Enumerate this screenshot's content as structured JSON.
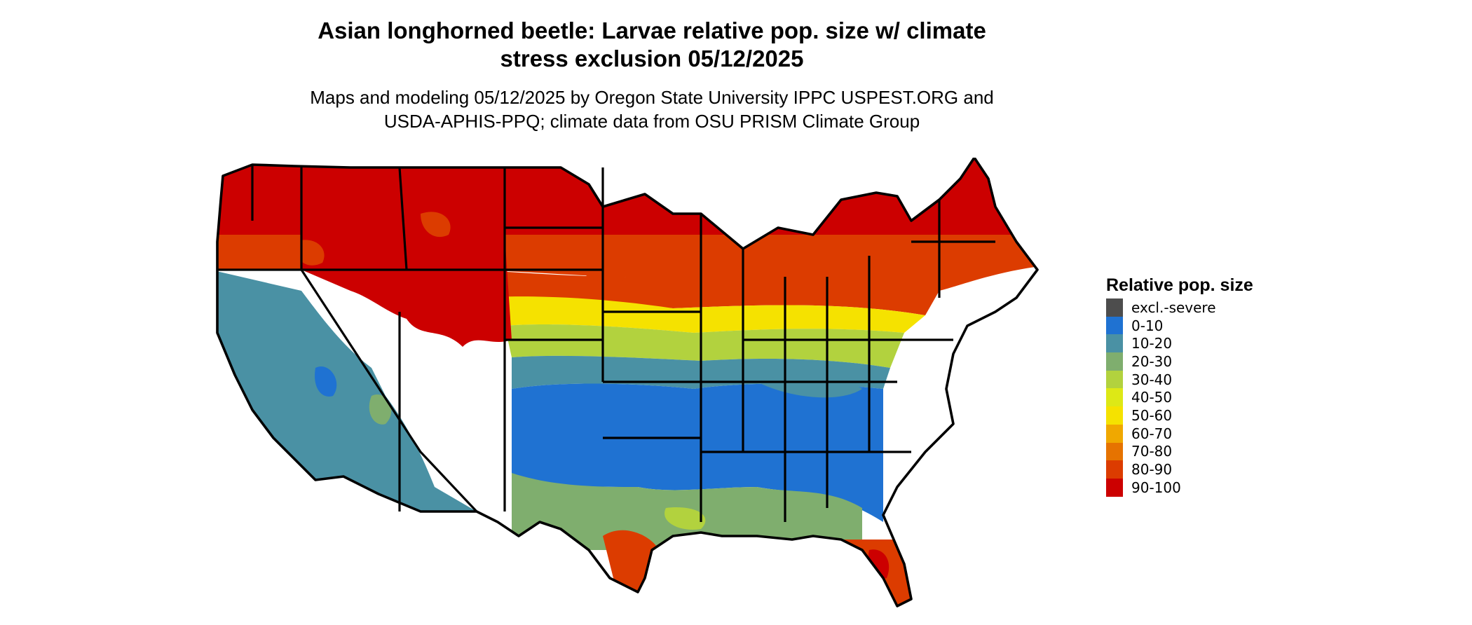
{
  "title": {
    "line1": "Asian longhorned beetle: Larvae relative pop. size w/ climate",
    "line2": "stress exclusion 05/12/2025"
  },
  "subtitle": {
    "line1": "Maps and modeling 05/12/2025 by Oregon State University IPPC USPEST.ORG and",
    "line2": "USDA-APHIS-PPQ; climate data from OSU PRISM Climate Group"
  },
  "legend": {
    "title": "Relative pop. size",
    "items": [
      {
        "label": "excl.-severe",
        "color": "#4d4d4d"
      },
      {
        "label": "0-10",
        "color": "#1f72d2"
      },
      {
        "label": "10-20",
        "color": "#4a91a4"
      },
      {
        "label": "20-30",
        "color": "#7fae6e"
      },
      {
        "label": "30-40",
        "color": "#b2d23e"
      },
      {
        "label": "40-50",
        "color": "#dde816"
      },
      {
        "label": "50-60",
        "color": "#f5e200"
      },
      {
        "label": "60-70",
        "color": "#f0a800"
      },
      {
        "label": "70-80",
        "color": "#e67300"
      },
      {
        "label": "80-90",
        "color": "#dc3c00"
      },
      {
        "label": "90-100",
        "color": "#cc0000"
      }
    ]
  },
  "map": {
    "region": "Contiguous United States",
    "bands": [
      {
        "id": "north",
        "class_index": 10
      },
      {
        "id": "upper-mid",
        "class_index": 9
      },
      {
        "id": "mid",
        "class_index": 6
      },
      {
        "id": "lower-mid",
        "class_index": 4
      },
      {
        "id": "south-transition",
        "class_index": 2
      },
      {
        "id": "south",
        "class_index": 1
      },
      {
        "id": "gulf-coast",
        "class_index": 3
      },
      {
        "id": "florida-tip",
        "class_index": 9
      },
      {
        "id": "texas-tip",
        "class_index": 9
      },
      {
        "id": "southwest-desert",
        "class_index": 2
      },
      {
        "id": "mountain-west",
        "class_index": 10
      }
    ]
  }
}
